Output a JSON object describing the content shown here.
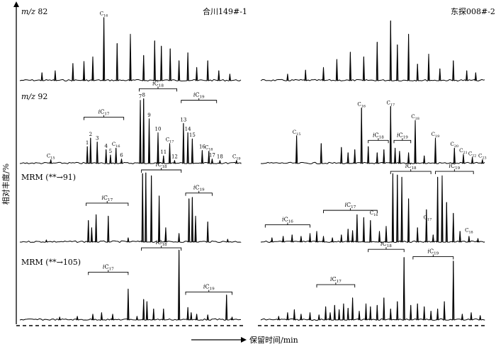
{
  "chart_data": {
    "type": "line",
    "ylabel": "相对丰度/%",
    "xlabel": "保留时间/min",
    "samples": [
      {
        "id": "left",
        "name": "合川149#-1"
      },
      {
        "id": "right",
        "name": "东探008#-2"
      }
    ],
    "panels": [
      {
        "id": "mz82",
        "label": "m/z 82",
        "left": {
          "peaks": [
            {
              "x": 0.1,
              "h": 0.12
            },
            {
              "x": 0.16,
              "h": 0.15
            },
            {
              "x": 0.24,
              "h": 0.26
            },
            {
              "x": 0.29,
              "h": 0.29
            },
            {
              "x": 0.33,
              "h": 0.36
            },
            {
              "x": 0.38,
              "h": 0.95,
              "label": "C",
              "sub": "16"
            },
            {
              "x": 0.44,
              "h": 0.56
            },
            {
              "x": 0.5,
              "h": 0.7
            },
            {
              "x": 0.56,
              "h": 0.38
            },
            {
              "x": 0.61,
              "h": 0.6
            },
            {
              "x": 0.64,
              "h": 0.52
            },
            {
              "x": 0.68,
              "h": 0.48
            },
            {
              "x": 0.72,
              "h": 0.3
            },
            {
              "x": 0.76,
              "h": 0.42
            },
            {
              "x": 0.8,
              "h": 0.2
            },
            {
              "x": 0.85,
              "h": 0.3
            },
            {
              "x": 0.9,
              "h": 0.15
            },
            {
              "x": 0.95,
              "h": 0.1
            }
          ],
          "braces": [],
          "tags": []
        },
        "right": {
          "peaks": [
            {
              "x": 0.12,
              "h": 0.1
            },
            {
              "x": 0.2,
              "h": 0.16
            },
            {
              "x": 0.28,
              "h": 0.2
            },
            {
              "x": 0.34,
              "h": 0.32
            },
            {
              "x": 0.4,
              "h": 0.43
            },
            {
              "x": 0.46,
              "h": 0.36
            },
            {
              "x": 0.52,
              "h": 0.58
            },
            {
              "x": 0.58,
              "h": 0.9
            },
            {
              "x": 0.61,
              "h": 0.54
            },
            {
              "x": 0.66,
              "h": 0.7
            },
            {
              "x": 0.7,
              "h": 0.25
            },
            {
              "x": 0.75,
              "h": 0.4
            },
            {
              "x": 0.8,
              "h": 0.18
            },
            {
              "x": 0.86,
              "h": 0.3
            },
            {
              "x": 0.92,
              "h": 0.15
            },
            {
              "x": 0.96,
              "h": 0.12
            }
          ],
          "braces": [],
          "tags": []
        }
      },
      {
        "id": "mz92",
        "label": "m/z 92",
        "left": {
          "peaks": [
            {
              "x": 0.14,
              "h": 0.05,
              "label": "C",
              "sub": "15"
            },
            {
              "x": 0.305,
              "h": 0.22,
              "label": "1"
            },
            {
              "x": 0.32,
              "h": 0.33,
              "label": "2"
            },
            {
              "x": 0.35,
              "h": 0.28,
              "label": "3"
            },
            {
              "x": 0.39,
              "h": 0.18,
              "label": "4"
            },
            {
              "x": 0.41,
              "h": 0.11,
              "label": "5"
            },
            {
              "x": 0.435,
              "h": 0.2,
              "label": "C",
              "sub": "16"
            },
            {
              "x": 0.46,
              "h": 0.06,
              "label": "6"
            },
            {
              "x": 0.545,
              "h": 0.82,
              "label": "7"
            },
            {
              "x": 0.56,
              "h": 0.84,
              "label": "8"
            },
            {
              "x": 0.585,
              "h": 0.58,
              "label": "9"
            },
            {
              "x": 0.625,
              "h": 0.4,
              "label": "10"
            },
            {
              "x": 0.65,
              "h": 0.1,
              "label": "11"
            },
            {
              "x": 0.678,
              "h": 0.26,
              "label": "C",
              "sub": "17"
            },
            {
              "x": 0.7,
              "h": 0.04,
              "label": "12"
            },
            {
              "x": 0.74,
              "h": 0.52,
              "label": "13"
            },
            {
              "x": 0.76,
              "h": 0.4,
              "label": "14"
            },
            {
              "x": 0.78,
              "h": 0.32,
              "label": "15"
            },
            {
              "x": 0.825,
              "h": 0.17,
              "label": "16"
            },
            {
              "x": 0.855,
              "h": 0.16,
              "label": "C",
              "sub": "18"
            },
            {
              "x": 0.87,
              "h": 0.06,
              "label": "17"
            },
            {
              "x": 0.905,
              "h": 0.04,
              "label": "18"
            },
            {
              "x": 0.98,
              "h": 0.04,
              "label": "C",
              "sub": "19"
            }
          ],
          "braces": [
            {
              "x1": 0.29,
              "x2": 0.47,
              "label": "iC",
              "sub": "17",
              "y": 0.6
            },
            {
              "x1": 0.54,
              "x2": 0.71,
              "label": "iC",
              "sub": "18",
              "y": 0.97
            },
            {
              "x1": 0.73,
              "x2": 0.89,
              "label": "iC",
              "sub": "19",
              "y": 0.82
            }
          ],
          "tags": []
        },
        "right": {
          "peaks": [
            {
              "x": 0.16,
              "h": 0.36,
              "label": "C",
              "sub": "15"
            },
            {
              "x": 0.27,
              "h": 0.26
            },
            {
              "x": 0.36,
              "h": 0.21
            },
            {
              "x": 0.39,
              "h": 0.14
            },
            {
              "x": 0.42,
              "h": 0.18
            },
            {
              "x": 0.45,
              "h": 0.72,
              "label": "C",
              "sub": "16"
            },
            {
              "x": 0.48,
              "h": 0.22
            },
            {
              "x": 0.52,
              "h": 0.14
            },
            {
              "x": 0.55,
              "h": 0.18
            },
            {
              "x": 0.58,
              "h": 0.74,
              "label": "C",
              "sub": "17"
            },
            {
              "x": 0.6,
              "h": 0.2
            },
            {
              "x": 0.62,
              "h": 0.16
            },
            {
              "x": 0.66,
              "h": 0.14
            },
            {
              "x": 0.69,
              "h": 0.56,
              "label": "C",
              "sub": "18"
            },
            {
              "x": 0.73,
              "h": 0.1
            },
            {
              "x": 0.78,
              "h": 0.33,
              "label": "C",
              "sub": "19"
            },
            {
              "x": 0.865,
              "h": 0.2,
              "label": "C",
              "sub": "20"
            },
            {
              "x": 0.905,
              "h": 0.12,
              "label": "C",
              "sub": "21"
            },
            {
              "x": 0.945,
              "h": 0.08,
              "label": "C",
              "sub": "22"
            },
            {
              "x": 0.99,
              "h": 0.05,
              "label": "C",
              "sub": "23"
            }
          ],
          "braces": [
            {
              "x1": 0.48,
              "x2": 0.57,
              "label": "iC",
              "sub": "18",
              "y": 0.3
            },
            {
              "x1": 0.595,
              "x2": 0.67,
              "label": "iC",
              "sub": "19",
              "y": 0.3
            }
          ],
          "tags": []
        }
      },
      {
        "id": "mrm91",
        "label": "MRM (**→91)",
        "left": {
          "peaks": [
            {
              "x": 0.12,
              "h": 0.03
            },
            {
              "x": 0.31,
              "h": 0.3
            },
            {
              "x": 0.325,
              "h": 0.2
            },
            {
              "x": 0.345,
              "h": 0.38
            },
            {
              "x": 0.4,
              "h": 0.36
            },
            {
              "x": 0.49,
              "h": 0.06
            },
            {
              "x": 0.555,
              "h": 0.95
            },
            {
              "x": 0.57,
              "h": 0.96
            },
            {
              "x": 0.595,
              "h": 0.92
            },
            {
              "x": 0.63,
              "h": 0.64
            },
            {
              "x": 0.66,
              "h": 0.2
            },
            {
              "x": 0.72,
              "h": 0.12
            },
            {
              "x": 0.765,
              "h": 0.6
            },
            {
              "x": 0.78,
              "h": 0.62
            },
            {
              "x": 0.795,
              "h": 0.36
            },
            {
              "x": 0.85,
              "h": 0.28
            },
            {
              "x": 0.94,
              "h": 0.04
            }
          ],
          "braces": [
            {
              "x1": 0.3,
              "x2": 0.49,
              "label": "iC",
              "sub": "17",
              "y": 0.54
            },
            {
              "x1": 0.55,
              "x2": 0.73,
              "label": "iC",
              "sub": "18",
              "y": 1.0
            },
            {
              "x1": 0.75,
              "x2": 0.87,
              "label": "iC",
              "sub": "19",
              "y": 0.68
            }
          ],
          "tags": []
        },
        "right": {
          "peaks": [
            {
              "x": 0.05,
              "h": 0.06
            },
            {
              "x": 0.1,
              "h": 0.08
            },
            {
              "x": 0.14,
              "h": 0.1
            },
            {
              "x": 0.18,
              "h": 0.08
            },
            {
              "x": 0.22,
              "h": 0.12
            },
            {
              "x": 0.25,
              "h": 0.15
            },
            {
              "x": 0.28,
              "h": 0.08
            },
            {
              "x": 0.32,
              "h": 0.06
            },
            {
              "x": 0.36,
              "h": 0.1
            },
            {
              "x": 0.39,
              "h": 0.18
            },
            {
              "x": 0.41,
              "h": 0.16
            },
            {
              "x": 0.43,
              "h": 0.38
            },
            {
              "x": 0.46,
              "h": 0.34
            },
            {
              "x": 0.49,
              "h": 0.3
            },
            {
              "x": 0.53,
              "h": 0.15
            },
            {
              "x": 0.56,
              "h": 0.22
            },
            {
              "x": 0.59,
              "h": 0.95
            },
            {
              "x": 0.61,
              "h": 0.93
            },
            {
              "x": 0.63,
              "h": 0.9
            },
            {
              "x": 0.66,
              "h": 0.6
            },
            {
              "x": 0.7,
              "h": 0.2
            },
            {
              "x": 0.74,
              "h": 0.45
            },
            {
              "x": 0.77,
              "h": 0.1
            },
            {
              "x": 0.79,
              "h": 0.9
            },
            {
              "x": 0.81,
              "h": 0.92
            },
            {
              "x": 0.83,
              "h": 0.55
            },
            {
              "x": 0.86,
              "h": 0.4
            },
            {
              "x": 0.89,
              "h": 0.15
            },
            {
              "x": 0.93,
              "h": 0.08
            },
            {
              "x": 0.97,
              "h": 0.05
            }
          ],
          "braces": [
            {
              "x1": 0.02,
              "x2": 0.22,
              "label": "iC",
              "sub": "16",
              "y": 0.24
            },
            {
              "x1": 0.28,
              "x2": 0.52,
              "label": "iC",
              "sub": "17",
              "y": 0.44
            },
            {
              "x1": 0.58,
              "x2": 0.76,
              "label": "iC",
              "sub": "18",
              "y": 0.98
            },
            {
              "x1": 0.78,
              "x2": 0.95,
              "label": "iC",
              "sub": "19",
              "y": 0.98
            }
          ],
          "tags": [
            {
              "x": 0.505,
              "y": 0.38,
              "label": "C",
              "sub": "16"
            },
            {
              "x": 0.745,
              "y": 0.32,
              "label": "C",
              "sub": "17"
            },
            {
              "x": 0.93,
              "y": 0.14,
              "label": "C",
              "sub": "18"
            }
          ]
        }
      },
      {
        "id": "mrm105",
        "label": "MRM (**→105)",
        "left": {
          "peaks": [
            {
              "x": 0.18,
              "h": 0.04
            },
            {
              "x": 0.26,
              "h": 0.05
            },
            {
              "x": 0.33,
              "h": 0.08
            },
            {
              "x": 0.37,
              "h": 0.1
            },
            {
              "x": 0.42,
              "h": 0.08
            },
            {
              "x": 0.49,
              "h": 0.42
            },
            {
              "x": 0.53,
              "h": 0.05
            },
            {
              "x": 0.56,
              "h": 0.28
            },
            {
              "x": 0.575,
              "h": 0.25
            },
            {
              "x": 0.605,
              "h": 0.15
            },
            {
              "x": 0.65,
              "h": 0.15
            },
            {
              "x": 0.72,
              "h": 0.95
            },
            {
              "x": 0.76,
              "h": 0.17
            },
            {
              "x": 0.775,
              "h": 0.1
            },
            {
              "x": 0.8,
              "h": 0.08
            },
            {
              "x": 0.85,
              "h": 0.07
            },
            {
              "x": 0.935,
              "h": 0.34
            },
            {
              "x": 0.96,
              "h": 0.04
            }
          ],
          "braces": [
            {
              "x1": 0.31,
              "x2": 0.49,
              "label": "iC",
              "sub": "17",
              "y": 0.65
            },
            {
              "x1": 0.55,
              "x2": 0.73,
              "label": "iC",
              "sub": "18",
              "y": 0.98
            },
            {
              "x1": 0.75,
              "x2": 0.96,
              "label": "iC",
              "sub": "19",
              "y": 0.38
            }
          ],
          "tags": []
        },
        "right": {
          "peaks": [
            {
              "x": 0.08,
              "h": 0.05
            },
            {
              "x": 0.12,
              "h": 0.1
            },
            {
              "x": 0.15,
              "h": 0.14
            },
            {
              "x": 0.18,
              "h": 0.08
            },
            {
              "x": 0.22,
              "h": 0.1
            },
            {
              "x": 0.26,
              "h": 0.07
            },
            {
              "x": 0.29,
              "h": 0.18
            },
            {
              "x": 0.31,
              "h": 0.1
            },
            {
              "x": 0.33,
              "h": 0.2
            },
            {
              "x": 0.35,
              "h": 0.14
            },
            {
              "x": 0.37,
              "h": 0.22
            },
            {
              "x": 0.39,
              "h": 0.16
            },
            {
              "x": 0.41,
              "h": 0.3
            },
            {
              "x": 0.44,
              "h": 0.12
            },
            {
              "x": 0.47,
              "h": 0.22
            },
            {
              "x": 0.49,
              "h": 0.18
            },
            {
              "x": 0.52,
              "h": 0.2
            },
            {
              "x": 0.55,
              "h": 0.3
            },
            {
              "x": 0.58,
              "h": 0.15
            },
            {
              "x": 0.61,
              "h": 0.25
            },
            {
              "x": 0.64,
              "h": 0.85
            },
            {
              "x": 0.67,
              "h": 0.2
            },
            {
              "x": 0.7,
              "h": 0.22
            },
            {
              "x": 0.73,
              "h": 0.18
            },
            {
              "x": 0.76,
              "h": 0.12
            },
            {
              "x": 0.79,
              "h": 0.15
            },
            {
              "x": 0.82,
              "h": 0.25
            },
            {
              "x": 0.86,
              "h": 0.8
            },
            {
              "x": 0.9,
              "h": 0.08
            },
            {
              "x": 0.94,
              "h": 0.1
            },
            {
              "x": 0.98,
              "h": 0.06
            }
          ],
          "braces": [
            {
              "x1": 0.25,
              "x2": 0.42,
              "label": "iC",
              "sub": "17",
              "y": 0.48
            },
            {
              "x1": 0.48,
              "x2": 0.64,
              "label": "iC",
              "sub": "18",
              "y": 0.96
            },
            {
              "x1": 0.68,
              "x2": 0.86,
              "label": "iC",
              "sub": "19",
              "y": 0.86
            }
          ],
          "tags": []
        }
      }
    ]
  }
}
